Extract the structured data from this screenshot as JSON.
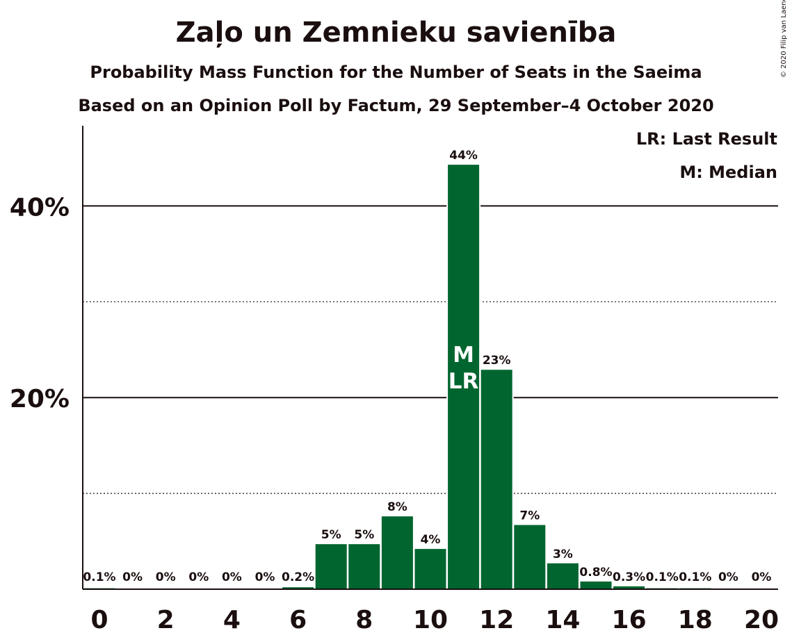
{
  "title": "Zaļo un Zemnieku savienība",
  "subtitle": "Probability Mass Function for the Number of Seats in the Saeima",
  "subtitle2": "Based on an Opinion Poll by Factum, 29 September–4 October 2020",
  "copyright": "© 2020 Filip van Laenen",
  "legend": {
    "lr": "LR: Last Result",
    "m": "M: Median"
  },
  "colors": {
    "bar": "#00652f",
    "text": "#1a0e0e",
    "marker_text": "#ffffff"
  },
  "chart_data": {
    "type": "bar",
    "x": [
      0,
      1,
      2,
      3,
      4,
      5,
      6,
      7,
      8,
      9,
      10,
      11,
      12,
      13,
      14,
      15,
      16,
      17,
      18,
      19,
      20
    ],
    "values": [
      0.1,
      0,
      0,
      0,
      0,
      0,
      0.2,
      4.7,
      4.7,
      7.6,
      4.2,
      44.3,
      22.9,
      6.7,
      2.7,
      0.8,
      0.3,
      0.1,
      0.1,
      0,
      0
    ],
    "labels": [
      "0.1%",
      "0%",
      "0%",
      "0%",
      "0%",
      "0%",
      "0.2%",
      "5%",
      "5%",
      "8%",
      "4%",
      "44%",
      "23%",
      "7%",
      "3%",
      "0.8%",
      "0.3%",
      "0.1%",
      "0.1%",
      "0%",
      "0%"
    ],
    "xticks": [
      "0",
      "2",
      "4",
      "6",
      "8",
      "10",
      "12",
      "14",
      "16",
      "18",
      "20"
    ],
    "yticks": [
      "20%",
      "40%"
    ],
    "ylim": [
      0,
      48
    ],
    "median": 11,
    "last_result": 11,
    "median_label": "M",
    "last_result_label": "LR"
  }
}
